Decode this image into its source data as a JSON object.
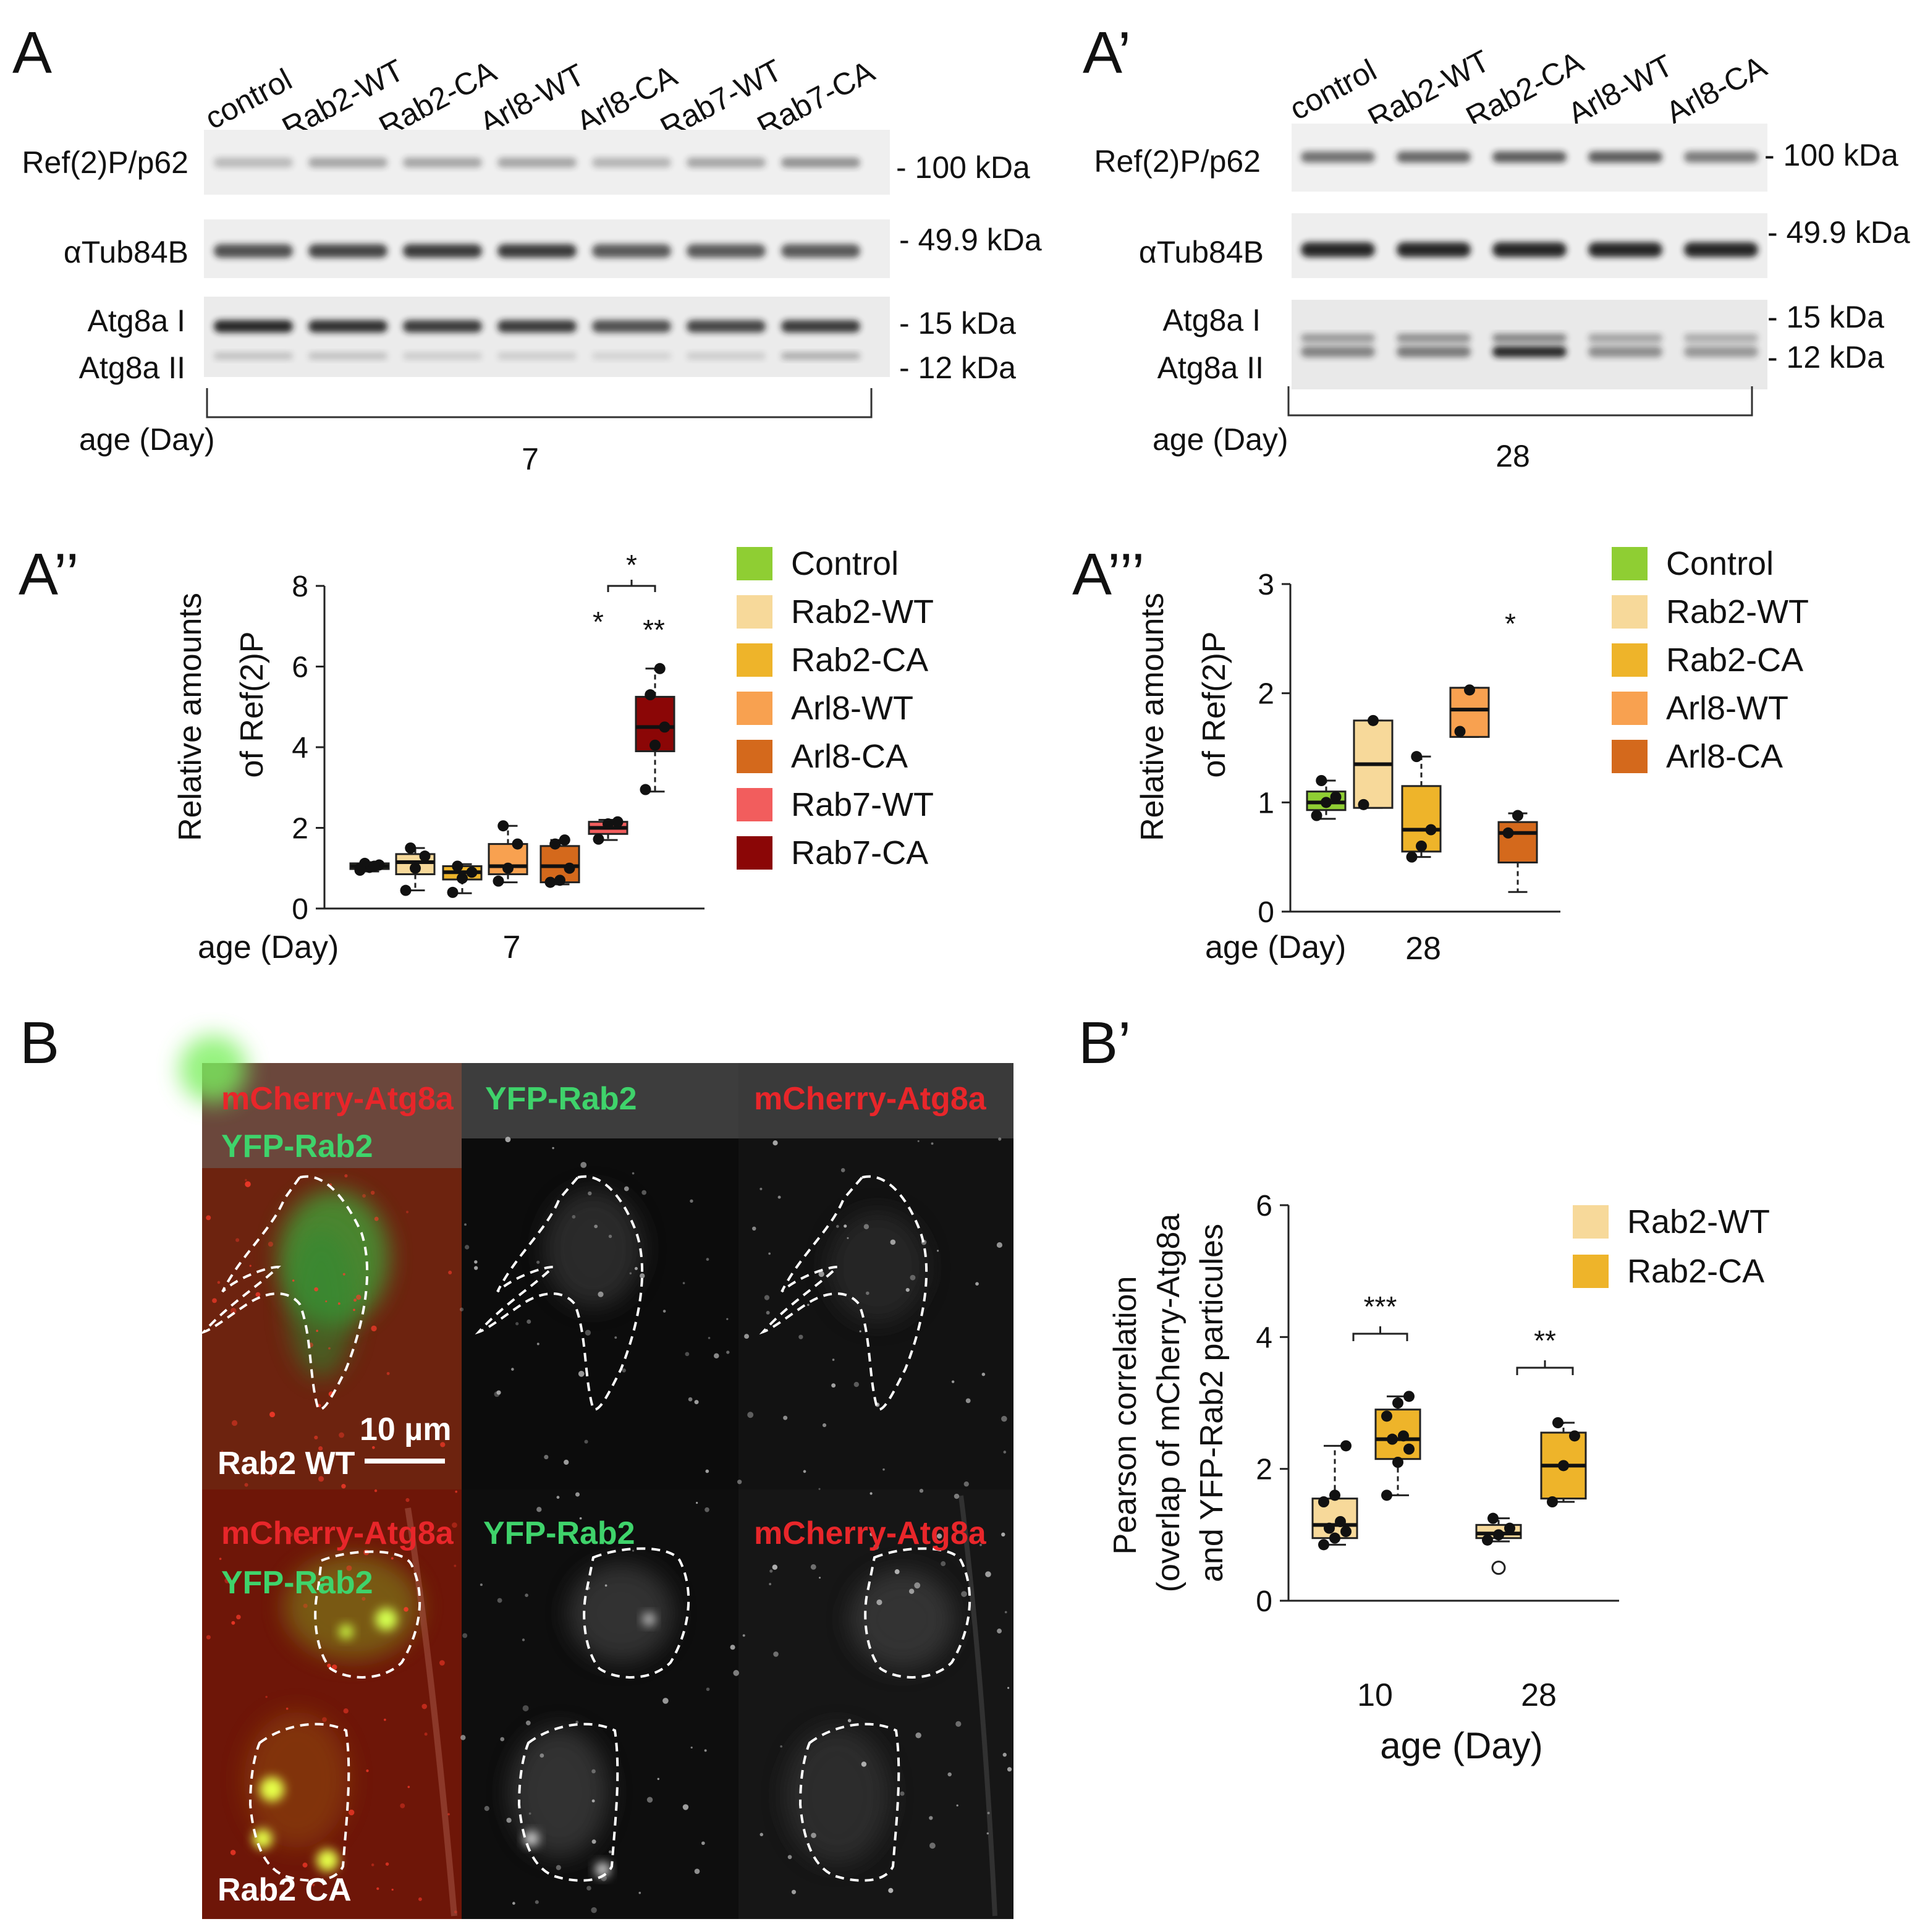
{
  "panels": {
    "A": "A",
    "A1": "A’",
    "A2": "A’’",
    "A3": "A’’’",
    "B": "B",
    "B1": "B’"
  },
  "blot_7": {
    "lanes": [
      "control",
      "Rab2-WT",
      "Rab2-CA",
      "Arl8-WT",
      "Arl8-CA",
      "Rab7-WT",
      "Rab7-CA"
    ],
    "rows": [
      "Ref(2)P/p62",
      "αTub84B",
      "Atg8a I",
      "Atg8a II"
    ],
    "markers": [
      "- 100 kDa",
      "- 49.9 kDa",
      "- 15 kDa",
      "- 12 kDa"
    ],
    "age_label": "age (Day)",
    "age_value": "7"
  },
  "blot_28": {
    "lanes": [
      "control",
      "Rab2-WT",
      "Rab2-CA",
      "Arl8-WT",
      "Arl8-CA"
    ],
    "rows": [
      "Ref(2)P/p62",
      "αTub84B",
      "Atg8a I",
      "Atg8a II"
    ],
    "markers": [
      "- 100 kDa",
      "- 49.9 kDa",
      "- 15 kDa",
      "- 12 kDa"
    ],
    "age_label": "age (Day)",
    "age_value": "28"
  },
  "microscopy": {
    "headers": [
      "mCherry-Atg8a",
      "YFP-Rab2",
      "YFP-Rab2",
      "mCherry-Atg8a"
    ],
    "row_labels": [
      "Rab2 WT",
      "Rab2 CA"
    ],
    "scale_bar": "10 µm"
  },
  "colors": {
    "control": "#8fce33",
    "rab2_wt": "#f7d99a",
    "rab2_ca": "#eeb42a",
    "arl8_wt": "#f8a150",
    "arl8_ca": "#d4691c",
    "rab7_wt": "#f25d5d",
    "rab7_ca": "#8b0606"
  },
  "chart_data": [
    {
      "type": "box",
      "ylabel": "Relative amounts of Ref(2)P",
      "ylabel_lines": [
        "Relative amounts",
        "of Ref(2)P"
      ],
      "xlabel": "age (Day)",
      "x_tick": "7",
      "ylim": [
        0,
        8
      ],
      "yticks": [
        "0",
        "2",
        "4",
        "6",
        "8"
      ],
      "series": [
        {
          "name": "Control",
          "q1": 0.98,
          "median": 1.05,
          "q3": 1.12,
          "wlo": 0.92,
          "whi": 1.15,
          "points": [
            0.95,
            1.02,
            1.08,
            1.12,
            1.05,
            1.0
          ]
        },
        {
          "name": "Rab2-WT",
          "q1": 0.85,
          "median": 1.15,
          "q3": 1.35,
          "wlo": 0.45,
          "whi": 1.5,
          "points": [
            0.45,
            1.0,
            1.3,
            1.5
          ]
        },
        {
          "name": "Rab2-CA",
          "q1": 0.72,
          "median": 0.9,
          "q3": 1.05,
          "wlo": 0.38,
          "whi": 1.1,
          "points": [
            0.4,
            0.75,
            0.9,
            1.05
          ]
        },
        {
          "name": "Arl8-WT",
          "q1": 0.85,
          "median": 1.05,
          "q3": 1.6,
          "wlo": 0.65,
          "whi": 2.05,
          "points": [
            0.68,
            1.0,
            1.6,
            2.05
          ]
        },
        {
          "name": "Arl8-CA",
          "q1": 0.65,
          "median": 1.05,
          "q3": 1.55,
          "wlo": 0.6,
          "whi": 1.7,
          "points": [
            0.65,
            0.7,
            1.0,
            1.6,
            1.7
          ]
        },
        {
          "name": "Rab7-WT",
          "q1": 1.85,
          "median": 2.0,
          "q3": 2.15,
          "wlo": 1.7,
          "whi": 2.2,
          "points": [
            1.72,
            2.1,
            2.15
          ]
        },
        {
          "name": "Rab7-CA",
          "q1": 3.9,
          "median": 4.5,
          "q3": 5.25,
          "wlo": 2.9,
          "whi": 5.95,
          "points": [
            2.95,
            4.05,
            4.5,
            5.3,
            5.95
          ]
        }
      ],
      "annotations": [
        "*",
        "*",
        "**"
      ]
    },
    {
      "type": "box",
      "ylabel": "Relative amounts of Ref(2)P",
      "ylabel_lines": [
        "Relative amounts",
        "of Ref(2)P"
      ],
      "xlabel": "age (Day)",
      "x_tick": "28",
      "ylim": [
        0,
        3
      ],
      "yticks": [
        "0",
        "1",
        "2",
        "3"
      ],
      "series": [
        {
          "name": "Control",
          "q1": 0.93,
          "median": 1.0,
          "q3": 1.1,
          "wlo": 0.85,
          "whi": 1.2,
          "points": [
            0.88,
            1.0,
            1.05,
            1.2
          ]
        },
        {
          "name": "Rab2-WT",
          "q1": 0.95,
          "median": 1.35,
          "q3": 1.75,
          "wlo": 0.95,
          "whi": 1.75,
          "points": [
            0.98,
            1.75
          ]
        },
        {
          "name": "Rab2-CA",
          "q1": 0.55,
          "median": 0.75,
          "q3": 1.15,
          "wlo": 0.5,
          "whi": 1.42,
          "points": [
            0.5,
            0.6,
            0.75,
            1.42
          ]
        },
        {
          "name": "Arl8-WT",
          "q1": 1.6,
          "median": 1.85,
          "q3": 2.05,
          "wlo": 1.6,
          "whi": 2.05,
          "points": [
            1.65,
            2.03
          ]
        },
        {
          "name": "Arl8-CA",
          "q1": 0.45,
          "median": 0.72,
          "q3": 0.82,
          "wlo": 0.18,
          "whi": 0.9,
          "points": [
            0.72,
            0.88
          ]
        }
      ],
      "annotations": [
        "*"
      ]
    },
    {
      "type": "box",
      "ylabel": "Pearson correlation (overlap of mCherry-Atg8a and YFP-Rab2 particules",
      "ylabel_lines": [
        "Pearson correlation",
        "(overlap of mCherry-Atg8a",
        "and YFP-Rab2 particules"
      ],
      "xlabel": "age (Day)",
      "x_ticks": [
        "10",
        "28"
      ],
      "ylim": [
        0,
        6
      ],
      "yticks": [
        "0",
        "2",
        "4",
        "6"
      ],
      "series": [
        {
          "name": "Rab2-WT",
          "group": "10",
          "q1": 0.95,
          "median": 1.15,
          "q3": 1.55,
          "wlo": 0.85,
          "whi": 2.35,
          "points": [
            0.85,
            0.95,
            1.05,
            1.1,
            1.2,
            1.5,
            1.6,
            2.35
          ]
        },
        {
          "name": "Rab2-CA",
          "group": "10",
          "q1": 2.15,
          "median": 2.45,
          "q3": 2.9,
          "wlo": 1.6,
          "whi": 3.1,
          "points": [
            1.6,
            2.1,
            2.3,
            2.45,
            2.5,
            2.8,
            3.0,
            3.1
          ]
        },
        {
          "name": "Rab2-WT",
          "group": "28",
          "q1": 0.95,
          "median": 1.02,
          "q3": 1.15,
          "wlo": 0.9,
          "whi": 1.25,
          "points": [
            0.92,
            1.0,
            1.1,
            1.25
          ],
          "outliers": [
            0.5
          ]
        },
        {
          "name": "Rab2-CA",
          "group": "28",
          "q1": 1.55,
          "median": 2.05,
          "q3": 2.55,
          "wlo": 1.5,
          "whi": 2.7,
          "points": [
            1.5,
            2.05,
            2.5,
            2.7
          ]
        }
      ],
      "annotations": [
        "***",
        "**"
      ]
    }
  ]
}
